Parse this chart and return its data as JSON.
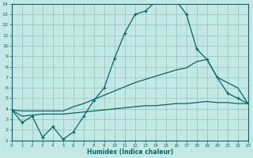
{
  "xlabel": "Humidex (Indice chaleur)",
  "bg_color": "#c4e8e4",
  "grid_color": "#9dccc8",
  "line_color": "#006868",
  "xlim": [
    0,
    23
  ],
  "ylim": [
    1,
    14
  ],
  "xticks": [
    0,
    1,
    2,
    3,
    4,
    5,
    6,
    7,
    8,
    9,
    10,
    11,
    12,
    13,
    14,
    15,
    16,
    17,
    18,
    19,
    20,
    21,
    22,
    23
  ],
  "yticks": [
    1,
    2,
    3,
    4,
    5,
    6,
    7,
    8,
    9,
    10,
    11,
    12,
    13,
    14
  ],
  "curve1_x": [
    0,
    1,
    2,
    3,
    4,
    5,
    6,
    7,
    8,
    9,
    10,
    11,
    12,
    13,
    14,
    15,
    16,
    17,
    18,
    19,
    20,
    21,
    22,
    23
  ],
  "curve1_y": [
    3.9,
    2.7,
    3.3,
    1.3,
    2.3,
    1.1,
    1.8,
    3.3,
    4.8,
    6.0,
    8.8,
    11.2,
    13.0,
    13.3,
    14.2,
    14.5,
    14.3,
    13.0,
    9.7,
    8.7,
    7.0,
    5.5,
    5.0,
    4.5
  ],
  "curve2_x": [
    0,
    1,
    2,
    3,
    4,
    5,
    6,
    7,
    8,
    9,
    10,
    11,
    12,
    13,
    14,
    15,
    16,
    17,
    18,
    19,
    20,
    21,
    22,
    23
  ],
  "curve2_y": [
    3.9,
    3.8,
    3.8,
    3.8,
    3.8,
    3.8,
    4.2,
    4.5,
    4.9,
    5.3,
    5.7,
    6.1,
    6.5,
    6.8,
    7.1,
    7.4,
    7.7,
    7.9,
    8.5,
    8.7,
    7.0,
    6.5,
    6.0,
    4.5
  ],
  "curve3_x": [
    0,
    1,
    2,
    3,
    4,
    5,
    6,
    7,
    8,
    9,
    10,
    11,
    12,
    13,
    14,
    15,
    16,
    17,
    18,
    19,
    20,
    21,
    22,
    23
  ],
  "curve3_y": [
    3.9,
    3.3,
    3.4,
    3.5,
    3.5,
    3.5,
    3.6,
    3.7,
    3.8,
    3.9,
    4.0,
    4.1,
    4.2,
    4.3,
    4.3,
    4.4,
    4.5,
    4.5,
    4.6,
    4.7,
    4.6,
    4.6,
    4.5,
    4.5
  ]
}
